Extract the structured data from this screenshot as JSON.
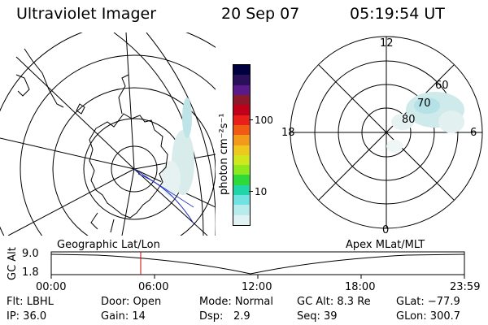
{
  "header": {
    "instrument": "Ultraviolet Imager",
    "date": "20 Sep 07",
    "time": "05:19:54 UT"
  },
  "colorbar": {
    "unit_label": "photon cm⁻²s⁻¹",
    "ticks": [
      "100",
      "10"
    ],
    "colors": [
      "#000040",
      "#2a0f5a",
      "#5a1a8a",
      "#8a1a2a",
      "#c0001a",
      "#e8201a",
      "#f05a12",
      "#f39a1a",
      "#efc81e",
      "#cfe81e",
      "#8ee81e",
      "#2ed93a",
      "#20d6a8",
      "#70e2e2",
      "#b8ecec",
      "#e0f2f2"
    ]
  },
  "left_panel": {
    "label": "Geographic Lat/Lon"
  },
  "right_panel": {
    "label": "Apex MLat/MLT",
    "mlt_labels": {
      "top": "12",
      "left": "18",
      "right": "6",
      "bottom": "0"
    },
    "lat_labels": [
      "60",
      "70",
      "80"
    ]
  },
  "timeline": {
    "ylabel": "GC Alt",
    "ymax": "9.0",
    "ymin": "1.8",
    "ticks": [
      "00:00",
      "06:00",
      "12:00",
      "18:00",
      "23:59"
    ],
    "marker_color": "#d00000"
  },
  "status": {
    "flt": "Flt: LBHL",
    "ip": "IP: 36.0",
    "door": "Door: Open",
    "gain": "Gain: 14",
    "mode": "Mode: Normal",
    "dsp_label": "Dsp:",
    "dsp_value": "2.9",
    "gc_alt": "GC Alt: 8.3 Re",
    "seq": "Seq: 39",
    "glat": "GLat: −77.9",
    "glon": "GLon: 300.7"
  }
}
